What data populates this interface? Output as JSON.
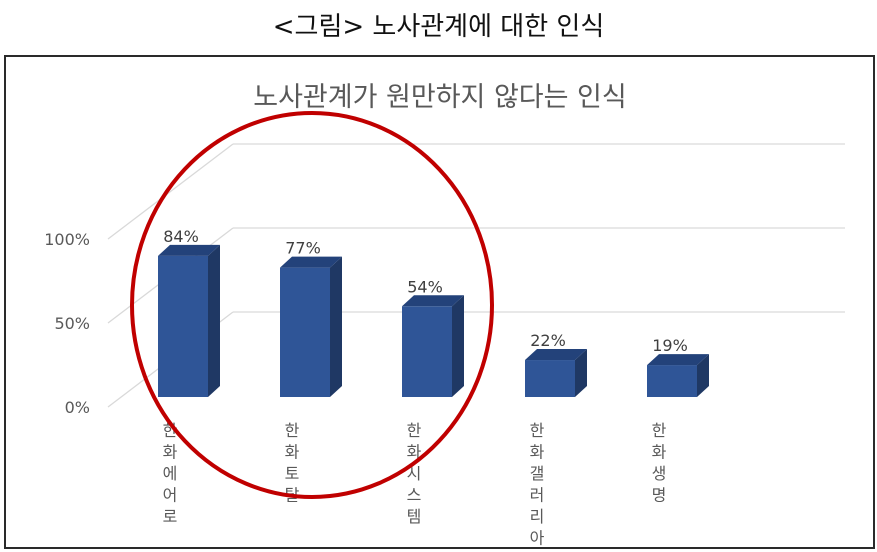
{
  "figure_caption": "<그림> 노사관계에 대한 인식",
  "chart_data": {
    "type": "bar",
    "variant": "3d-column",
    "title": "노사관계가 원만하지 않다는 인식",
    "xlabel": "",
    "ylabel": "",
    "categories": [
      "한화에어로",
      "한화토탈",
      "한화시스템",
      "한화갤러리아",
      "한화생명"
    ],
    "values": [
      84,
      77,
      54,
      22,
      19
    ],
    "value_labels": [
      "84%",
      "77%",
      "54%",
      "22%",
      "19%"
    ],
    "yticks": [
      "0%",
      "50%",
      "100%"
    ],
    "ylim": [
      0,
      150
    ],
    "grid": true,
    "legend": null,
    "bar_color": "#2F5597",
    "annotation": {
      "type": "ellipse",
      "color": "#C00000",
      "encloses": [
        "한화에어로",
        "한화토탈",
        "한화시스템"
      ]
    }
  }
}
